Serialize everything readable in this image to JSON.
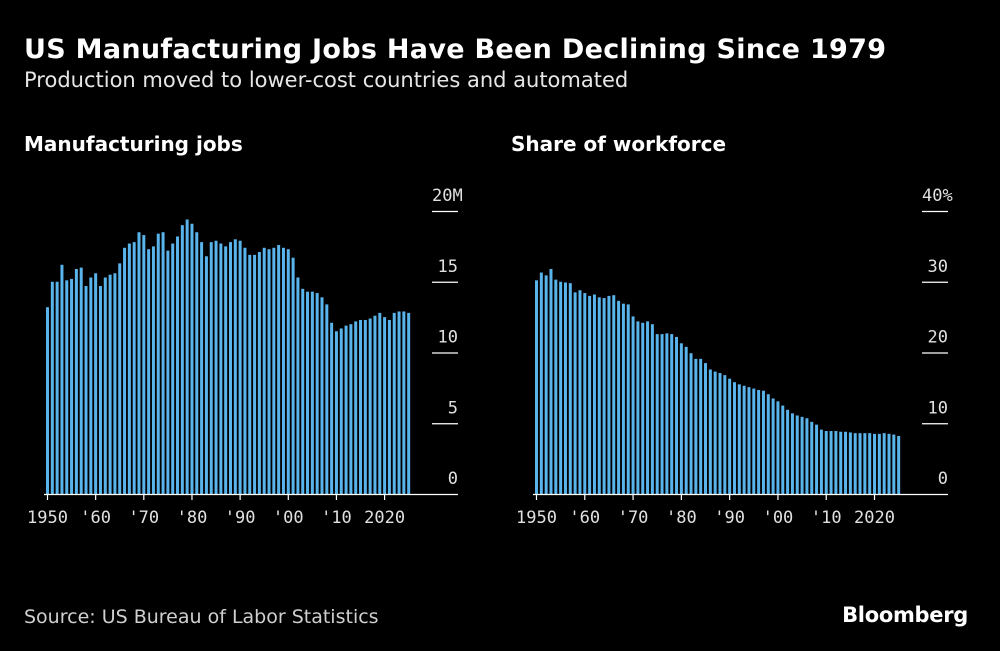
{
  "title": "US Manufacturing Jobs Have Been Declining Since 1979",
  "subtitle": "Production moved to lower-cost countries and automated",
  "source": "Source: US Bureau of Labor Statistics",
  "brand": "Bloomberg",
  "colors": {
    "background": "#000000",
    "bar": "#5AB4EC",
    "axis": "#ffffff"
  },
  "chart_data": [
    {
      "type": "bar",
      "title": "Manufacturing jobs",
      "ylim": [
        0,
        20
      ],
      "ytick_labels": [
        "0",
        "5",
        "10",
        "15",
        "20M"
      ],
      "xtick_labels": [
        "1950",
        "'60",
        "'70",
        "'80",
        "'90",
        "'00",
        "'10",
        "2020"
      ],
      "x": [
        1950,
        1951,
        1952,
        1953,
        1954,
        1955,
        1956,
        1957,
        1958,
        1959,
        1960,
        1961,
        1962,
        1963,
        1964,
        1965,
        1966,
        1967,
        1968,
        1969,
        1970,
        1971,
        1972,
        1973,
        1974,
        1975,
        1976,
        1977,
        1978,
        1979,
        1980,
        1981,
        1982,
        1983,
        1984,
        1985,
        1986,
        1987,
        1988,
        1989,
        1990,
        1991,
        1992,
        1993,
        1994,
        1995,
        1996,
        1997,
        1998,
        1999,
        2000,
        2001,
        2002,
        2003,
        2004,
        2005,
        2006,
        2007,
        2008,
        2009,
        2010,
        2011,
        2012,
        2013,
        2014,
        2015,
        2016,
        2017,
        2018,
        2019,
        2020,
        2021,
        2022,
        2023,
        2024,
        2025
      ],
      "values": [
        13.2,
        15.0,
        15.0,
        16.2,
        15.1,
        15.2,
        15.9,
        16.0,
        14.7,
        15.3,
        15.6,
        14.7,
        15.3,
        15.5,
        15.6,
        16.3,
        17.4,
        17.7,
        17.8,
        18.5,
        18.3,
        17.3,
        17.5,
        18.4,
        18.5,
        17.2,
        17.7,
        18.2,
        19.0,
        19.4,
        19.1,
        18.5,
        17.8,
        16.8,
        17.8,
        17.9,
        17.7,
        17.5,
        17.8,
        18.0,
        17.9,
        17.4,
        16.9,
        16.9,
        17.1,
        17.4,
        17.3,
        17.4,
        17.6,
        17.4,
        17.3,
        16.7,
        15.3,
        14.5,
        14.3,
        14.3,
        14.2,
        13.9,
        13.4,
        12.1,
        11.5,
        11.7,
        11.9,
        12.0,
        12.2,
        12.3,
        12.3,
        12.4,
        12.6,
        12.8,
        12.5,
        12.3,
        12.8,
        12.9,
        12.9,
        12.8
      ]
    },
    {
      "type": "bar",
      "title": "Share of workforce",
      "ylim": [
        0,
        40
      ],
      "ytick_labels": [
        "0",
        "10",
        "20",
        "30",
        "40%"
      ],
      "xtick_labels": [
        "1950",
        "'60",
        "'70",
        "'80",
        "'90",
        "'00",
        "'10",
        "2020"
      ],
      "x": [
        1950,
        1951,
        1952,
        1953,
        1954,
        1955,
        1956,
        1957,
        1958,
        1959,
        1960,
        1961,
        1962,
        1963,
        1964,
        1965,
        1966,
        1967,
        1968,
        1969,
        1970,
        1971,
        1972,
        1973,
        1974,
        1975,
        1976,
        1977,
        1978,
        1979,
        1980,
        1981,
        1982,
        1983,
        1984,
        1985,
        1986,
        1987,
        1988,
        1989,
        1990,
        1991,
        1992,
        1993,
        1994,
        1995,
        1996,
        1997,
        1998,
        1999,
        2000,
        2001,
        2002,
        2003,
        2004,
        2005,
        2006,
        2007,
        2008,
        2009,
        2010,
        2011,
        2012,
        2013,
        2014,
        2015,
        2016,
        2017,
        2018,
        2019,
        2020,
        2021,
        2022,
        2023,
        2024,
        2025
      ],
      "values": [
        30.2,
        31.3,
        30.9,
        31.8,
        30.3,
        30.0,
        29.9,
        29.8,
        28.5,
        28.8,
        28.4,
        28.0,
        28.2,
        27.8,
        27.7,
        28.0,
        28.1,
        27.3,
        26.9,
        26.8,
        25.1,
        24.4,
        24.2,
        24.4,
        24.0,
        22.6,
        22.6,
        22.7,
        22.6,
        22.2,
        21.3,
        20.8,
        19.9,
        19.1,
        19.1,
        18.5,
        17.6,
        17.3,
        17.1,
        16.8,
        16.3,
        15.8,
        15.5,
        15.3,
        15.1,
        14.9,
        14.7,
        14.6,
        14.1,
        13.5,
        13.1,
        12.5,
        11.9,
        11.4,
        11.1,
        10.9,
        10.7,
        10.2,
        9.8,
        9.1,
        8.9,
        8.9,
        8.9,
        8.8,
        8.8,
        8.7,
        8.6,
        8.6,
        8.6,
        8.6,
        8.5,
        8.5,
        8.6,
        8.5,
        8.4,
        8.2
      ]
    }
  ]
}
